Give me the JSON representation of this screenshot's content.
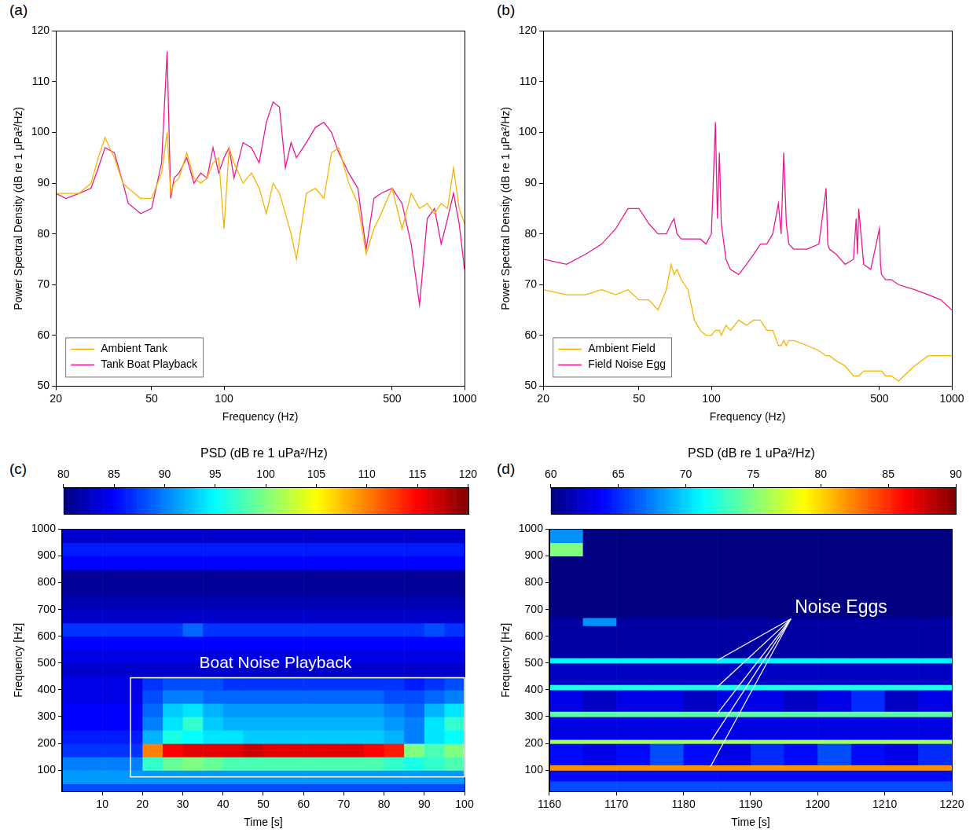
{
  "chart_data": [
    {
      "panel": "(a)",
      "type": "line",
      "log": "x",
      "grid": false,
      "legend": "lower left",
      "x_label": "Frequency (Hz)",
      "y_label": "Power Spectral Density (dB re 1 μPa²/Hz)",
      "xlim": [
        20,
        1000
      ],
      "xticks": [
        20,
        50,
        100,
        500,
        1000
      ],
      "ylim": [
        50,
        120
      ],
      "yticks": [
        50,
        60,
        70,
        80,
        90,
        100,
        110,
        120
      ],
      "x": [
        20,
        22,
        25,
        28,
        30,
        32,
        35,
        38,
        40,
        45,
        50,
        55,
        58,
        60,
        62,
        65,
        70,
        75,
        80,
        85,
        90,
        95,
        100,
        105,
        110,
        120,
        130,
        140,
        150,
        160,
        170,
        180,
        190,
        200,
        220,
        240,
        260,
        280,
        300,
        330,
        360,
        390,
        420,
        450,
        500,
        550,
        600,
        650,
        700,
        750,
        800,
        850,
        900,
        950,
        1000
      ],
      "series": [
        {
          "name": "Ambient Tank",
          "color": "#f5b400",
          "values": [
            88,
            88,
            88,
            90,
            95,
            99,
            95,
            90,
            89,
            87,
            87,
            92,
            100,
            88,
            90,
            91,
            96,
            91,
            90,
            91,
            94,
            95,
            81,
            97,
            94,
            90,
            92,
            89,
            84,
            90,
            88,
            84,
            80,
            75,
            88,
            89,
            87,
            96,
            97,
            90,
            86,
            76,
            81,
            84,
            89,
            81,
            88,
            85,
            86,
            84,
            86,
            85,
            93,
            85,
            82
          ]
        },
        {
          "name": "Tank Boat Playback",
          "color": "#e8198b",
          "values": [
            88,
            87,
            88,
            89,
            93,
            97,
            96,
            90,
            86,
            84,
            85,
            94,
            116,
            87,
            91,
            92,
            95,
            90,
            92,
            91,
            97,
            92,
            95,
            97,
            91,
            98,
            97,
            94,
            102,
            106,
            105,
            93,
            98,
            95,
            98,
            101,
            102,
            100,
            96,
            92,
            89,
            77,
            87,
            88,
            89,
            86,
            78,
            66,
            83,
            85,
            78,
            83,
            88,
            82,
            73
          ]
        }
      ]
    },
    {
      "panel": "(b)",
      "type": "line",
      "log": "x",
      "grid": false,
      "legend": "lower left",
      "x_label": "Frequency (Hz)",
      "y_label": "Power Spectral Density (dB re 1 μPa²/Hz)",
      "xlim": [
        20,
        1000
      ],
      "xticks": [
        20,
        50,
        100,
        500,
        1000
      ],
      "ylim": [
        50,
        120
      ],
      "yticks": [
        50,
        60,
        70,
        80,
        90,
        100,
        110,
        120
      ],
      "x": [
        20,
        25,
        30,
        35,
        40,
        45,
        50,
        55,
        60,
        65,
        68,
        70,
        72,
        75,
        80,
        85,
        90,
        95,
        100,
        104,
        106,
        108,
        110,
        115,
        120,
        130,
        140,
        150,
        160,
        170,
        180,
        190,
        195,
        200,
        205,
        210,
        220,
        250,
        280,
        300,
        305,
        310,
        330,
        360,
        390,
        400,
        405,
        410,
        430,
        460,
        500,
        505,
        510,
        530,
        560,
        600,
        700,
        800,
        900,
        1000
      ],
      "series": [
        {
          "name": "Ambient Field",
          "color": "#f5b400",
          "values": [
            69,
            68,
            68,
            69,
            68,
            69,
            67,
            67,
            65,
            69,
            74,
            72,
            73,
            71,
            69,
            63,
            61,
            60,
            60,
            61,
            61,
            61,
            60,
            62,
            61,
            63,
            62,
            63,
            63,
            61,
            61,
            58,
            58,
            59,
            58,
            59,
            59,
            58,
            57,
            56,
            56,
            56,
            55,
            54,
            52,
            52,
            52,
            52,
            53,
            53,
            53,
            53,
            53,
            52,
            52,
            51,
            54,
            56,
            56,
            56
          ]
        },
        {
          "name": "Field Noise Egg",
          "color": "#e8198b",
          "values": [
            75,
            74,
            76,
            78,
            81,
            85,
            85,
            82,
            80,
            80,
            82,
            83,
            80,
            79,
            79,
            79,
            79,
            78,
            80,
            102,
            83,
            96,
            82,
            75,
            73,
            72,
            74,
            76,
            78,
            78,
            80,
            86,
            80,
            96,
            82,
            78,
            77,
            77,
            78,
            89,
            78,
            77,
            76,
            74,
            75,
            83,
            76,
            85,
            74,
            73,
            81,
            74,
            72,
            71,
            71,
            70,
            69,
            68,
            67,
            65
          ]
        }
      ]
    },
    {
      "panel": "(c)",
      "type": "heatmap",
      "x_label": "Time [s]",
      "y_label": "Frequency [Hz]",
      "xlim": [
        0,
        100
      ],
      "xticks": [
        10,
        20,
        30,
        40,
        50,
        60,
        70,
        80,
        90,
        100
      ],
      "ylim": [
        20,
        1000
      ],
      "yticks": [
        100,
        200,
        300,
        400,
        500,
        600,
        700,
        800,
        900,
        1000
      ],
      "colorbar": {
        "label": "PSD (dB re 1 uPa²/Hz)",
        "range": [
          80,
          120
        ],
        "ticks": [
          80,
          85,
          90,
          95,
          100,
          105,
          110,
          115,
          120
        ]
      },
      "time_bins": [
        0,
        5,
        10,
        15,
        20,
        25,
        30,
        35,
        40,
        45,
        50,
        55,
        60,
        65,
        70,
        75,
        80,
        85,
        90,
        95,
        100
      ],
      "freq_bins": [
        20,
        50,
        100,
        150,
        200,
        250,
        300,
        350,
        400,
        450,
        500,
        550,
        600,
        650,
        700,
        750,
        800,
        850,
        900,
        950,
        1000
      ],
      "cells": [
        [
          88,
          88,
          88,
          88,
          88,
          88,
          88,
          88,
          88,
          88,
          88,
          88,
          88,
          88,
          88,
          88,
          88,
          88,
          88,
          88
        ],
        [
          91,
          91,
          91,
          91,
          91,
          91,
          91,
          91,
          91,
          91,
          91,
          91,
          91,
          91,
          91,
          91,
          91,
          91,
          91,
          91
        ],
        [
          90,
          90,
          90,
          90,
          97,
          99,
          100,
          99,
          98,
          98,
          98,
          98,
          98,
          98,
          98,
          98,
          97,
          96,
          97,
          98
        ],
        [
          87,
          87,
          87,
          87,
          110,
          115,
          116,
          116,
          116,
          117,
          116,
          116,
          116,
          116,
          116,
          115,
          114,
          100,
          98,
          100
        ],
        [
          86,
          86,
          86,
          86,
          92,
          96,
          95,
          94,
          94,
          93,
          93,
          93,
          93,
          93,
          93,
          93,
          92,
          90,
          94,
          95
        ],
        [
          85,
          85,
          85,
          85,
          90,
          94,
          97,
          93,
          92,
          92,
          92,
          92,
          92,
          92,
          92,
          92,
          91,
          90,
          94,
          97
        ],
        [
          85,
          85,
          85,
          85,
          89,
          93,
          94,
          92,
          91,
          91,
          91,
          91,
          91,
          91,
          91,
          91,
          90,
          89,
          92,
          94
        ],
        [
          84,
          84,
          84,
          84,
          88,
          90,
          90,
          89,
          89,
          89,
          89,
          89,
          89,
          89,
          89,
          89,
          88,
          88,
          89,
          90
        ],
        [
          84,
          84,
          84,
          84,
          87,
          88,
          88,
          88,
          87,
          87,
          87,
          87,
          87,
          87,
          87,
          87,
          87,
          86,
          87,
          88
        ],
        [
          83,
          83,
          83,
          83,
          83,
          83,
          83,
          83,
          83,
          83,
          83,
          83,
          83,
          83,
          83,
          83,
          83,
          83,
          83,
          83
        ],
        [
          84,
          84,
          84,
          84,
          84,
          84,
          84,
          84,
          84,
          84,
          84,
          84,
          84,
          84,
          84,
          84,
          84,
          84,
          84,
          84
        ],
        [
          85,
          85,
          85,
          85,
          85,
          85,
          85,
          85,
          85,
          85,
          85,
          85,
          85,
          85,
          85,
          85,
          85,
          85,
          85,
          85
        ],
        [
          87,
          87,
          87,
          87,
          87,
          87,
          89,
          87,
          87,
          87,
          87,
          87,
          87,
          87,
          87,
          87,
          87,
          87,
          88,
          87
        ],
        [
          83,
          83,
          83,
          83,
          83,
          83,
          83,
          83,
          83,
          83,
          83,
          83,
          83,
          83,
          83,
          83,
          83,
          83,
          83,
          83
        ],
        [
          82,
          82,
          82,
          82,
          82,
          82,
          82,
          82,
          82,
          82,
          82,
          82,
          82,
          82,
          82,
          82,
          82,
          82,
          82,
          82
        ],
        [
          81,
          81,
          81,
          81,
          81,
          81,
          81,
          81,
          81,
          81,
          81,
          81,
          81,
          81,
          81,
          81,
          81,
          81,
          81,
          81
        ],
        [
          81,
          81,
          81,
          81,
          81,
          81,
          81,
          81,
          81,
          81,
          81,
          81,
          81,
          81,
          81,
          81,
          81,
          81,
          81,
          81
        ],
        [
          85,
          85,
          85,
          85,
          85,
          85,
          85,
          85,
          85,
          85,
          85,
          85,
          85,
          85,
          85,
          85,
          85,
          85,
          85,
          85
        ],
        [
          86,
          86,
          86,
          86,
          86,
          86,
          86,
          86,
          86,
          86,
          86,
          86,
          86,
          86,
          86,
          86,
          86,
          86,
          86,
          86
        ],
        [
          83,
          83,
          83,
          83,
          83,
          83,
          83,
          83,
          83,
          83,
          83,
          83,
          83,
          83,
          83,
          83,
          83,
          83,
          83,
          83
        ]
      ],
      "annotations": [
        {
          "text": "Boat Noise Playback",
          "x": 53,
          "y": 500,
          "box": {
            "x": [
              17,
              100
            ],
            "y": [
              75,
              445
            ]
          }
        }
      ]
    },
    {
      "panel": "(d)",
      "type": "heatmap",
      "x_label": "Time [s]",
      "y_label": "Frequency [Hz]",
      "xlim": [
        1160,
        1220
      ],
      "xticks": [
        1160,
        1170,
        1180,
        1190,
        1200,
        1210,
        1220
      ],
      "ylim": [
        20,
        1000
      ],
      "yticks": [
        100,
        200,
        300,
        400,
        500,
        600,
        700,
        800,
        900,
        1000
      ],
      "colorbar": {
        "label": "PSD (dB re 1 uPa²/Hz)",
        "range": [
          60,
          90
        ],
        "ticks": [
          60,
          65,
          70,
          75,
          80,
          85,
          90
        ]
      },
      "time_bins": [
        1160,
        1165,
        1170,
        1175,
        1180,
        1185,
        1190,
        1195,
        1200,
        1205,
        1210,
        1215,
        1220
      ],
      "freq_bins": [
        20,
        60,
        100,
        120,
        200,
        215,
        300,
        320,
        400,
        420,
        500,
        520,
        640,
        670,
        900,
        950,
        1000
      ],
      "cells": [
        [
          66,
          66,
          66,
          66,
          66,
          66,
          66,
          66,
          66,
          66,
          66,
          66
        ],
        [
          64,
          64,
          64,
          64,
          64,
          64,
          64,
          64,
          64,
          64,
          64,
          64
        ],
        [
          82,
          82,
          82,
          82,
          82,
          82,
          82,
          82,
          82,
          82,
          82,
          82
        ],
        [
          64,
          63,
          64,
          66,
          64,
          63,
          65,
          64,
          66,
          64,
          63,
          65
        ],
        [
          76,
          76,
          76,
          76,
          76,
          76,
          76,
          76,
          76,
          76,
          76,
          76
        ],
        [
          63,
          63,
          63,
          63,
          63,
          63,
          63,
          63,
          63,
          63,
          63,
          63
        ],
        [
          74,
          74,
          74,
          74,
          74,
          74,
          74,
          74,
          74,
          74,
          74,
          74
        ],
        [
          63,
          62,
          63,
          63,
          62,
          63,
          63,
          62,
          63,
          65,
          62,
          63
        ],
        [
          72,
          72,
          72,
          72,
          72,
          72,
          72,
          72,
          72,
          72,
          72,
          72
        ],
        [
          62,
          62,
          62,
          62,
          62,
          62,
          62,
          62,
          62,
          62,
          62,
          62
        ],
        [
          71,
          71,
          71,
          71,
          71,
          71,
          71,
          71,
          71,
          71,
          71,
          71
        ],
        [
          61,
          61,
          61,
          61,
          61,
          61,
          61,
          61,
          61,
          61,
          61,
          61
        ],
        [
          61,
          68,
          61,
          61,
          61,
          61,
          61,
          61,
          61,
          61,
          61,
          61
        ],
        [
          60,
          60,
          60,
          60,
          60,
          60,
          60,
          60,
          60,
          60,
          60,
          60
        ],
        [
          75,
          60,
          60,
          60,
          60,
          60,
          60,
          60,
          60,
          60,
          60,
          60
        ],
        [
          68,
          60,
          60,
          60,
          60,
          60,
          60,
          60,
          60,
          60,
          60,
          60
        ]
      ],
      "annotations": [
        {
          "text": "Noise Eggs",
          "x": 1196,
          "y": 665,
          "pointers": [
            {
              "x": 1185,
              "y": 510
            },
            {
              "x": 1185,
              "y": 410
            },
            {
              "x": 1185,
              "y": 310
            },
            {
              "x": 1184,
              "y": 205
            },
            {
              "x": 1184,
              "y": 112
            }
          ]
        }
      ]
    }
  ]
}
